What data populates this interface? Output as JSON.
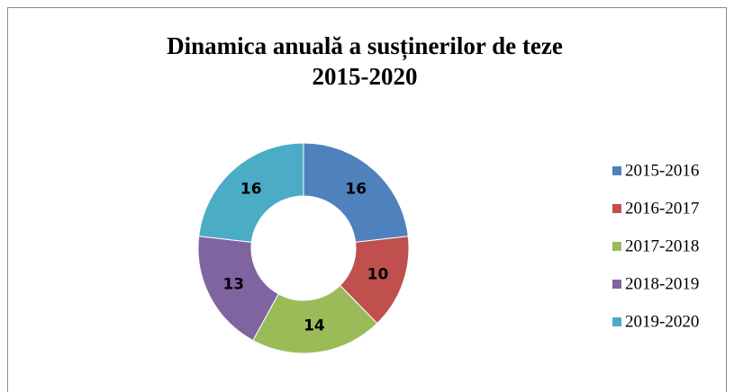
{
  "chart_data": {
    "type": "donut",
    "title": [
      "Dinamica anuală a susținerilor de teze",
      "2015-2020"
    ],
    "categories": [
      "2015-2016",
      "2016-2017",
      "2017-2018",
      "2018-2019",
      "2019-2020"
    ],
    "values": [
      16,
      10,
      14,
      13,
      16
    ],
    "colors": [
      "#4f81bd",
      "#c0504d",
      "#9bbb59",
      "#8064a2",
      "#4bacc6"
    ],
    "legend": "right"
  }
}
